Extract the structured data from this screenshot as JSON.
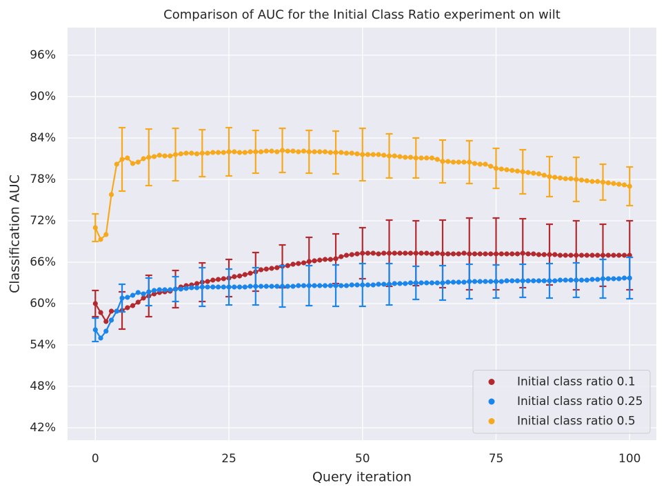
{
  "chart_data": {
    "type": "line",
    "title": "Comparison of AUC for the Initial Class Ratio experiment on wilt",
    "xlabel": "Query iteration",
    "ylabel": "Classification AUC",
    "x": [
      0,
      1,
      2,
      3,
      4,
      5,
      6,
      7,
      8,
      9,
      10,
      11,
      12,
      13,
      14,
      15,
      16,
      17,
      18,
      19,
      20,
      21,
      22,
      23,
      24,
      25,
      26,
      27,
      28,
      29,
      30,
      31,
      32,
      33,
      34,
      35,
      36,
      37,
      38,
      39,
      40,
      41,
      42,
      43,
      44,
      45,
      46,
      47,
      48,
      49,
      50,
      51,
      52,
      53,
      54,
      55,
      56,
      57,
      58,
      59,
      60,
      61,
      62,
      63,
      64,
      65,
      66,
      67,
      68,
      69,
      70,
      71,
      72,
      73,
      74,
      75,
      76,
      77,
      78,
      79,
      80,
      81,
      82,
      83,
      84,
      85,
      86,
      87,
      88,
      89,
      90,
      91,
      92,
      93,
      94,
      95,
      96,
      97,
      98,
      99,
      100
    ],
    "xlim": [
      -5.2,
      105
    ],
    "xticks": [
      0,
      25,
      50,
      75,
      100
    ],
    "ylim": [
      40.2,
      100
    ],
    "yticks": [
      {
        "value": 42,
        "label": "42%"
      },
      {
        "value": 48,
        "label": "48%"
      },
      {
        "value": 54,
        "label": "54%"
      },
      {
        "value": 60,
        "label": "60%"
      },
      {
        "value": 66,
        "label": "66%"
      },
      {
        "value": 72,
        "label": "72%"
      },
      {
        "value": 78,
        "label": "78%"
      },
      {
        "value": 84,
        "label": "84%"
      },
      {
        "value": 90,
        "label": "90%"
      },
      {
        "value": 96,
        "label": "96%"
      }
    ],
    "grid": true,
    "legend": "lower right",
    "series": [
      {
        "name": "Initial class ratio 0.1",
        "color": "#b22a2e",
        "values": [
          60.0,
          58.7,
          57.4,
          58.9,
          58.9,
          59.0,
          59.4,
          59.7,
          60.2,
          60.8,
          61.1,
          61.4,
          61.6,
          61.7,
          61.8,
          62.1,
          62.4,
          62.6,
          62.7,
          62.9,
          63.1,
          63.2,
          63.4,
          63.5,
          63.6,
          63.7,
          63.9,
          64.0,
          64.2,
          64.4,
          64.6,
          64.9,
          65.0,
          65.1,
          65.2,
          65.4,
          65.5,
          65.7,
          65.8,
          65.9,
          66.1,
          66.2,
          66.3,
          66.4,
          66.4,
          66.5,
          66.8,
          67.0,
          67.1,
          67.2,
          67.3,
          67.3,
          67.3,
          67.2,
          67.3,
          67.3,
          67.3,
          67.3,
          67.3,
          67.3,
          67.3,
          67.3,
          67.3,
          67.2,
          67.3,
          67.2,
          67.2,
          67.2,
          67.2,
          67.3,
          67.2,
          67.2,
          67.2,
          67.2,
          67.2,
          67.2,
          67.2,
          67.2,
          67.2,
          67.2,
          67.3,
          67.2,
          67.2,
          67.1,
          67.1,
          67.1,
          67.1,
          67.0,
          67.0,
          67.0,
          67.0,
          67.0,
          67.0,
          67.0,
          67.0,
          67.0,
          67.0,
          67.0,
          67.0,
          67.0,
          67.0
        ],
        "yerr": [
          1.9,
          null,
          null,
          null,
          null,
          2.7,
          null,
          null,
          null,
          null,
          3.0,
          null,
          null,
          null,
          null,
          2.7,
          null,
          null,
          null,
          null,
          2.8,
          null,
          null,
          null,
          null,
          2.7,
          null,
          null,
          null,
          null,
          2.8,
          null,
          null,
          null,
          null,
          3.1,
          null,
          null,
          null,
          null,
          3.5,
          null,
          null,
          null,
          null,
          3.6,
          null,
          null,
          null,
          null,
          3.7,
          null,
          null,
          null,
          null,
          4.8,
          null,
          null,
          null,
          null,
          4.7,
          null,
          null,
          null,
          null,
          4.9,
          null,
          null,
          null,
          null,
          5.2,
          null,
          null,
          null,
          null,
          5.2,
          null,
          null,
          null,
          null,
          5.0,
          null,
          null,
          null,
          null,
          4.4,
          null,
          null,
          null,
          null,
          5.0,
          null,
          null,
          null,
          null,
          4.5,
          null,
          null,
          null,
          null,
          5.0
        ]
      },
      {
        "name": "Initial class ratio 0.25",
        "color": "#1a85ea",
        "values": [
          56.2,
          55.0,
          56.0,
          57.6,
          58.9,
          60.8,
          60.9,
          61.2,
          61.6,
          61.4,
          61.7,
          61.9,
          62.0,
          62.0,
          62.0,
          62.1,
          62.1,
          62.2,
          62.3,
          62.3,
          62.4,
          62.4,
          62.4,
          62.4,
          62.4,
          62.4,
          62.4,
          62.4,
          62.4,
          62.5,
          62.5,
          62.5,
          62.5,
          62.5,
          62.5,
          62.5,
          62.5,
          62.5,
          62.6,
          62.6,
          62.6,
          62.6,
          62.6,
          62.6,
          62.6,
          62.6,
          62.6,
          62.6,
          62.7,
          62.7,
          62.7,
          62.7,
          62.7,
          62.8,
          62.8,
          62.8,
          62.9,
          62.9,
          62.9,
          63.0,
          63.0,
          63.0,
          63.0,
          63.0,
          63.0,
          63.0,
          63.1,
          63.1,
          63.1,
          63.1,
          63.2,
          63.2,
          63.2,
          63.2,
          63.2,
          63.2,
          63.2,
          63.3,
          63.3,
          63.3,
          63.3,
          63.3,
          63.3,
          63.3,
          63.3,
          63.3,
          63.3,
          63.4,
          63.4,
          63.4,
          63.4,
          63.4,
          63.4,
          63.5,
          63.5,
          63.6,
          63.6,
          63.6,
          63.6,
          63.7,
          63.7
        ],
        "yerr": [
          1.7,
          null,
          null,
          null,
          null,
          2.0,
          null,
          null,
          null,
          null,
          2.0,
          null,
          null,
          null,
          null,
          1.8,
          null,
          null,
          null,
          null,
          2.8,
          null,
          null,
          null,
          null,
          2.6,
          null,
          null,
          null,
          null,
          2.7,
          null,
          null,
          null,
          null,
          3.0,
          null,
          null,
          null,
          null,
          2.9,
          null,
          null,
          null,
          null,
          3.0,
          null,
          null,
          null,
          null,
          3.1,
          null,
          null,
          null,
          null,
          3.0,
          null,
          null,
          null,
          null,
          2.4,
          null,
          null,
          null,
          null,
          2.5,
          null,
          null,
          null,
          null,
          2.5,
          null,
          null,
          null,
          null,
          2.4,
          null,
          null,
          null,
          null,
          2.4,
          null,
          null,
          null,
          null,
          2.5,
          null,
          null,
          null,
          null,
          2.5,
          null,
          null,
          null,
          null,
          2.8,
          null,
          null,
          null,
          null,
          3.0
        ]
      },
      {
        "name": "Initial class ratio 0.5",
        "color": "#f6a91d",
        "values": [
          71.0,
          69.3,
          70.0,
          75.8,
          80.2,
          80.9,
          81.1,
          80.3,
          80.5,
          81.0,
          81.2,
          81.3,
          81.5,
          81.4,
          81.4,
          81.6,
          81.7,
          81.8,
          81.8,
          81.7,
          81.8,
          81.8,
          81.9,
          81.9,
          81.9,
          82.0,
          82.0,
          81.9,
          81.9,
          82.0,
          82.0,
          82.0,
          82.1,
          82.1,
          82.0,
          82.2,
          82.1,
          82.1,
          82.0,
          82.1,
          82.0,
          82.0,
          82.0,
          82.0,
          81.9,
          81.9,
          81.9,
          81.8,
          81.8,
          81.7,
          81.6,
          81.6,
          81.6,
          81.6,
          81.5,
          81.4,
          81.4,
          81.3,
          81.2,
          81.2,
          81.1,
          81.1,
          81.1,
          81.1,
          80.9,
          80.6,
          80.6,
          80.5,
          80.5,
          80.5,
          80.5,
          80.3,
          80.2,
          80.2,
          79.9,
          79.6,
          79.5,
          79.4,
          79.3,
          79.2,
          79.1,
          79.0,
          78.9,
          78.8,
          78.6,
          78.4,
          78.3,
          78.2,
          78.1,
          78.1,
          78.0,
          77.9,
          77.8,
          77.7,
          77.7,
          77.6,
          77.5,
          77.4,
          77.3,
          77.2,
          77.0
        ],
        "yerr": [
          2.0,
          null,
          null,
          null,
          null,
          4.6,
          null,
          null,
          null,
          null,
          4.1,
          null,
          null,
          null,
          null,
          3.8,
          null,
          null,
          null,
          null,
          3.4,
          null,
          null,
          null,
          null,
          3.5,
          null,
          null,
          null,
          null,
          3.1,
          null,
          null,
          null,
          null,
          3.2,
          null,
          null,
          null,
          null,
          3.1,
          null,
          null,
          null,
          null,
          3.1,
          null,
          null,
          null,
          null,
          3.8,
          null,
          null,
          null,
          null,
          3.2,
          null,
          null,
          null,
          null,
          2.9,
          null,
          null,
          null,
          null,
          3.1,
          null,
          null,
          null,
          null,
          3.1,
          null,
          null,
          null,
          null,
          2.9,
          null,
          null,
          null,
          null,
          3.2,
          null,
          null,
          null,
          null,
          2.9,
          null,
          null,
          null,
          null,
          3.2,
          null,
          null,
          null,
          null,
          2.6,
          null,
          null,
          null,
          null,
          2.8
        ]
      }
    ]
  }
}
